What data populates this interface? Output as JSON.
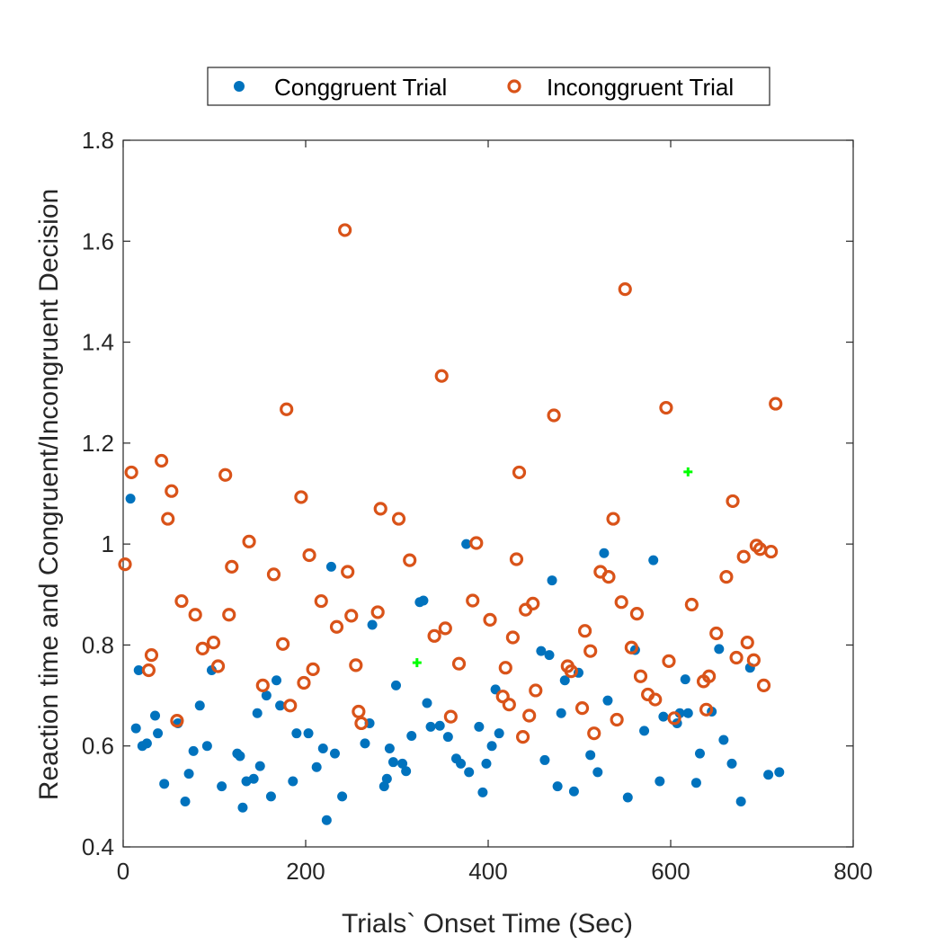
{
  "chart_data": {
    "type": "scatter",
    "title": "",
    "xlabel": "Trials` Onset Time (Sec)",
    "ylabel": "Reaction time and Congruent/Incongruent Decision",
    "xlim": [
      0,
      800
    ],
    "ylim": [
      0.4,
      1.8
    ],
    "xticks": [
      "0",
      "200",
      "400",
      "600",
      "800"
    ],
    "yticks": [
      "0.4",
      "0.6",
      "0.8",
      "1",
      "1.2",
      "1.4",
      "1.6",
      "1.8"
    ],
    "grid": false,
    "legend_position": "top-center-outside",
    "series": [
      {
        "name": "Conggruent Trial",
        "marker": "filled-circle",
        "color": "#0072BD",
        "points": [
          [
            8,
            1.09
          ],
          [
            14,
            0.635
          ],
          [
            17,
            0.75
          ],
          [
            21,
            0.6
          ],
          [
            26,
            0.605
          ],
          [
            35,
            0.66
          ],
          [
            38,
            0.625
          ],
          [
            45,
            0.525
          ],
          [
            60,
            0.645
          ],
          [
            68,
            0.49
          ],
          [
            72,
            0.545
          ],
          [
            77,
            0.59
          ],
          [
            84,
            0.68
          ],
          [
            92,
            0.6
          ],
          [
            97,
            0.75
          ],
          [
            108,
            0.52
          ],
          [
            125,
            0.585
          ],
          [
            128,
            0.58
          ],
          [
            131,
            0.478
          ],
          [
            135,
            0.53
          ],
          [
            143,
            0.535
          ],
          [
            147,
            0.665
          ],
          [
            150,
            0.56
          ],
          [
            157,
            0.7
          ],
          [
            162,
            0.5
          ],
          [
            168,
            0.73
          ],
          [
            172,
            0.68
          ],
          [
            186,
            0.53
          ],
          [
            190,
            0.625
          ],
          [
            203,
            0.625
          ],
          [
            212,
            0.558
          ],
          [
            219,
            0.595
          ],
          [
            223,
            0.453
          ],
          [
            228,
            0.955
          ],
          [
            232,
            0.585
          ],
          [
            240,
            0.5
          ],
          [
            265,
            0.605
          ],
          [
            270,
            0.645
          ],
          [
            273,
            0.84
          ],
          [
            286,
            0.52
          ],
          [
            289,
            0.535
          ],
          [
            292,
            0.595
          ],
          [
            296,
            0.568
          ],
          [
            299,
            0.72
          ],
          [
            306,
            0.565
          ],
          [
            310,
            0.55
          ],
          [
            316,
            0.62
          ],
          [
            325,
            0.885
          ],
          [
            329,
            0.888
          ],
          [
            333,
            0.685
          ],
          [
            337,
            0.638
          ],
          [
            347,
            0.64
          ],
          [
            356,
            0.618
          ],
          [
            365,
            0.575
          ],
          [
            370,
            0.565
          ],
          [
            376,
            1.0
          ],
          [
            379,
            0.548
          ],
          [
            390,
            0.638
          ],
          [
            394,
            0.508
          ],
          [
            398,
            0.565
          ],
          [
            404,
            0.6
          ],
          [
            408,
            0.712
          ],
          [
            412,
            0.625
          ],
          [
            458,
            0.788
          ],
          [
            462,
            0.572
          ],
          [
            467,
            0.78
          ],
          [
            470,
            0.928
          ],
          [
            476,
            0.52
          ],
          [
            480,
            0.665
          ],
          [
            484,
            0.73
          ],
          [
            494,
            0.51
          ],
          [
            499,
            0.745
          ],
          [
            512,
            0.582
          ],
          [
            520,
            0.548
          ],
          [
            527,
            0.982
          ],
          [
            531,
            0.69
          ],
          [
            553,
            0.498
          ],
          [
            561,
            0.79
          ],
          [
            571,
            0.63
          ],
          [
            581,
            0.968
          ],
          [
            588,
            0.53
          ],
          [
            592,
            0.658
          ],
          [
            607,
            0.645
          ],
          [
            610,
            0.665
          ],
          [
            616,
            0.732
          ],
          [
            619,
            0.665
          ],
          [
            628,
            0.527
          ],
          [
            632,
            0.585
          ],
          [
            645,
            0.668
          ],
          [
            653,
            0.792
          ],
          [
            658,
            0.612
          ],
          [
            667,
            0.565
          ],
          [
            677,
            0.49
          ],
          [
            687,
            0.755
          ],
          [
            707,
            0.543
          ],
          [
            719,
            0.548
          ]
        ]
      },
      {
        "name": "Inconggruent Trial",
        "marker": "open-circle",
        "color": "#D95319",
        "points": [
          [
            2,
            0.96
          ],
          [
            9,
            1.142
          ],
          [
            28,
            0.75
          ],
          [
            31,
            0.78
          ],
          [
            42,
            1.165
          ],
          [
            49,
            1.05
          ],
          [
            53,
            1.105
          ],
          [
            59,
            0.65
          ],
          [
            64,
            0.887
          ],
          [
            79,
            0.86
          ],
          [
            87,
            0.793
          ],
          [
            99,
            0.805
          ],
          [
            104,
            0.758
          ],
          [
            112,
            1.137
          ],
          [
            116,
            0.86
          ],
          [
            119,
            0.955
          ],
          [
            138,
            1.005
          ],
          [
            153,
            0.72
          ],
          [
            165,
            0.94
          ],
          [
            175,
            0.802
          ],
          [
            179,
            1.267
          ],
          [
            183,
            0.68
          ],
          [
            195,
            1.093
          ],
          [
            198,
            0.725
          ],
          [
            204,
            0.978
          ],
          [
            208,
            0.752
          ],
          [
            217,
            0.887
          ],
          [
            234,
            0.836
          ],
          [
            243,
            1.622
          ],
          [
            246,
            0.945
          ],
          [
            250,
            0.858
          ],
          [
            255,
            0.76
          ],
          [
            258,
            0.668
          ],
          [
            261,
            0.645
          ],
          [
            279,
            0.865
          ],
          [
            282,
            1.07
          ],
          [
            302,
            1.05
          ],
          [
            314,
            0.968
          ],
          [
            341,
            0.818
          ],
          [
            349,
            1.333
          ],
          [
            353,
            0.833
          ],
          [
            359,
            0.658
          ],
          [
            368,
            0.763
          ],
          [
            383,
            0.888
          ],
          [
            387,
            1.002
          ],
          [
            402,
            0.85
          ],
          [
            416,
            0.698
          ],
          [
            419,
            0.755
          ],
          [
            423,
            0.682
          ],
          [
            427,
            0.815
          ],
          [
            431,
            0.97
          ],
          [
            434,
            1.142
          ],
          [
            438,
            0.618
          ],
          [
            441,
            0.87
          ],
          [
            445,
            0.66
          ],
          [
            449,
            0.882
          ],
          [
            452,
            0.71
          ],
          [
            472,
            1.255
          ],
          [
            487,
            0.758
          ],
          [
            491,
            0.748
          ],
          [
            503,
            0.675
          ],
          [
            506,
            0.828
          ],
          [
            512,
            0.788
          ],
          [
            516,
            0.625
          ],
          [
            523,
            0.945
          ],
          [
            532,
            0.935
          ],
          [
            537,
            1.05
          ],
          [
            541,
            0.652
          ],
          [
            546,
            0.885
          ],
          [
            550,
            1.505
          ],
          [
            557,
            0.795
          ],
          [
            563,
            0.862
          ],
          [
            567,
            0.738
          ],
          [
            575,
            0.702
          ],
          [
            583,
            0.692
          ],
          [
            595,
            1.27
          ],
          [
            598,
            0.768
          ],
          [
            604,
            0.655
          ],
          [
            623,
            0.88
          ],
          [
            636,
            0.728
          ],
          [
            639,
            0.672
          ],
          [
            642,
            0.738
          ],
          [
            650,
            0.823
          ],
          [
            661,
            0.935
          ],
          [
            668,
            1.085
          ],
          [
            672,
            0.775
          ],
          [
            680,
            0.975
          ],
          [
            684,
            0.805
          ],
          [
            691,
            0.77
          ],
          [
            694,
            0.997
          ],
          [
            698,
            0.99
          ],
          [
            702,
            0.72
          ],
          [
            710,
            0.985
          ],
          [
            715,
            1.278
          ]
        ]
      }
    ],
    "highlights": [
      {
        "marker": "filled-plus",
        "color": "#00FF00",
        "points": [
          [
            322,
            0.765
          ],
          [
            619,
            1.143
          ]
        ]
      }
    ]
  }
}
